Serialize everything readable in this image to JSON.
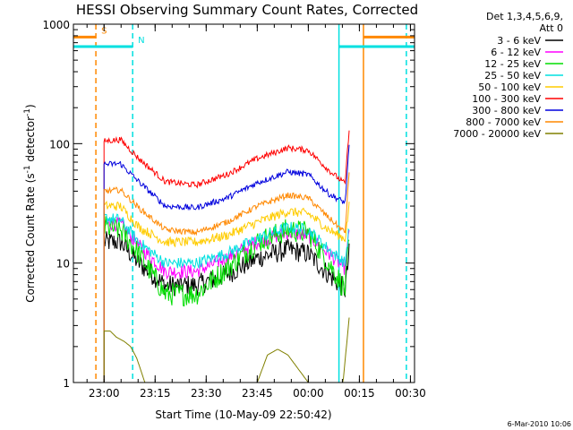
{
  "chart_data": {
    "type": "line",
    "title": "HESSI Observing Summary Count Rates, Corrected",
    "xlabel": "Start Time (10-May-09 22:50:42)",
    "ylabel": "Corrected Count Rate (s^-1 detector^-1)",
    "ylabel_parts": {
      "pre": "Corrected Count Rate (s",
      "exp1": "-1",
      "mid": " detector",
      "exp2": "-1",
      "post": ")"
    },
    "y_scale": "log",
    "ylim": [
      1,
      1000
    ],
    "xlim": [
      22.85,
      24.52
    ],
    "x_ticks": [
      {
        "value": 23.0,
        "label": "23:00"
      },
      {
        "value": 23.25,
        "label": "23:15"
      },
      {
        "value": 23.5,
        "label": "23:30"
      },
      {
        "value": 23.75,
        "label": "23:45"
      },
      {
        "value": 24.0,
        "label": "00:00"
      },
      {
        "value": 24.25,
        "label": "00:15"
      },
      {
        "value": 24.5,
        "label": "00:30"
      }
    ],
    "y_ticks": [
      {
        "value": 1,
        "label": "1"
      },
      {
        "value": 10,
        "label": "10"
      },
      {
        "value": 100,
        "label": "100"
      },
      {
        "value": 1000,
        "label": "1000"
      }
    ],
    "legend_header": [
      "Det 1,3,4,5,6,9,",
      "Att 0"
    ],
    "legend_placement": "right, outside plot",
    "grid": false,
    "data_window": [
      23.0,
      24.2
    ],
    "markers": [
      {
        "kind": "vline",
        "x": 22.96,
        "color": "#ff8800",
        "style": "dashed"
      },
      {
        "kind": "vline",
        "x": 23.14,
        "color": "#00e0e0",
        "style": "dashed"
      },
      {
        "kind": "vline",
        "x": 24.15,
        "color": "#00e0e0",
        "style": "solid"
      },
      {
        "kind": "vline",
        "x": 24.27,
        "color": "#ff8800",
        "style": "solid"
      },
      {
        "kind": "vline",
        "x": 24.48,
        "color": "#00e0e0",
        "style": "dashed"
      },
      {
        "kind": "hbar",
        "x1": 22.85,
        "x2": 22.96,
        "y": 780,
        "color": "#ff8800",
        "label": "S"
      },
      {
        "kind": "hbar",
        "x1": 22.85,
        "x2": 23.14,
        "y": 650,
        "color": "#00e0e0",
        "label": "N"
      },
      {
        "kind": "hbar",
        "x1": 24.15,
        "x2": 24.52,
        "y": 650,
        "color": "#00e0e0",
        "label": ""
      },
      {
        "kind": "hbar",
        "x1": 24.27,
        "x2": 24.52,
        "y": 780,
        "color": "#ff8800",
        "label": ""
      }
    ],
    "series": [
      {
        "name": "3 - 6 keV",
        "color": "#000000",
        "noise": 0.09,
        "points": [
          [
            23.0,
            15
          ],
          [
            23.08,
            15
          ],
          [
            23.17,
            10
          ],
          [
            23.3,
            6.5
          ],
          [
            23.45,
            6.5
          ],
          [
            23.6,
            8
          ],
          [
            23.75,
            11
          ],
          [
            23.9,
            13
          ],
          [
            24.0,
            12
          ],
          [
            24.1,
            8
          ],
          [
            24.18,
            6
          ],
          [
            24.2,
            12
          ]
        ]
      },
      {
        "name": "6 - 12 keV",
        "color": "#ff00ff",
        "noise": 0.06,
        "points": [
          [
            23.0,
            22
          ],
          [
            23.08,
            21
          ],
          [
            23.17,
            14
          ],
          [
            23.3,
            8.5
          ],
          [
            23.45,
            8.5
          ],
          [
            23.6,
            11
          ],
          [
            23.75,
            15
          ],
          [
            23.9,
            18
          ],
          [
            24.0,
            17
          ],
          [
            24.1,
            12
          ],
          [
            24.18,
            9
          ],
          [
            24.2,
            18
          ]
        ]
      },
      {
        "name": "12 - 25 keV",
        "color": "#00dd00",
        "noise": 0.1,
        "points": [
          [
            23.0,
            20
          ],
          [
            23.08,
            19
          ],
          [
            23.17,
            12
          ],
          [
            23.3,
            5.5
          ],
          [
            23.45,
            5.5
          ],
          [
            23.6,
            9
          ],
          [
            23.75,
            15
          ],
          [
            23.9,
            19
          ],
          [
            24.0,
            18
          ],
          [
            24.1,
            10
          ],
          [
            24.18,
            6
          ],
          [
            24.2,
            15
          ]
        ]
      },
      {
        "name": "25 - 50 keV",
        "color": "#00e0e0",
        "noise": 0.05,
        "points": [
          [
            23.0,
            24
          ],
          [
            23.08,
            23
          ],
          [
            23.17,
            15
          ],
          [
            23.3,
            10
          ],
          [
            23.45,
            10
          ],
          [
            23.6,
            12
          ],
          [
            23.75,
            16
          ],
          [
            23.9,
            20
          ],
          [
            24.0,
            19
          ],
          [
            24.1,
            13
          ],
          [
            24.18,
            10
          ],
          [
            24.2,
            20
          ]
        ]
      },
      {
        "name": "50 - 100 keV",
        "color": "#ffcc00",
        "noise": 0.04,
        "points": [
          [
            23.0,
            30
          ],
          [
            23.08,
            30
          ],
          [
            23.17,
            20
          ],
          [
            23.3,
            15
          ],
          [
            23.45,
            15
          ],
          [
            23.6,
            17
          ],
          [
            23.75,
            22
          ],
          [
            23.9,
            27
          ],
          [
            24.0,
            26
          ],
          [
            24.1,
            19
          ],
          [
            24.18,
            16
          ],
          [
            24.2,
            30
          ]
        ]
      },
      {
        "name": "100 - 300 keV",
        "color": "#ff0000",
        "noise": 0.025,
        "points": [
          [
            23.0,
            105
          ],
          [
            23.08,
            108
          ],
          [
            23.17,
            75
          ],
          [
            23.3,
            48
          ],
          [
            23.45,
            45
          ],
          [
            23.6,
            55
          ],
          [
            23.75,
            75
          ],
          [
            23.9,
            92
          ],
          [
            24.0,
            88
          ],
          [
            24.1,
            60
          ],
          [
            24.18,
            46
          ],
          [
            24.2,
            135
          ]
        ]
      },
      {
        "name": "300 - 800 keV",
        "color": "#0000dd",
        "noise": 0.025,
        "points": [
          [
            23.0,
            67
          ],
          [
            23.08,
            68
          ],
          [
            23.17,
            48
          ],
          [
            23.3,
            30
          ],
          [
            23.45,
            29
          ],
          [
            23.6,
            35
          ],
          [
            23.75,
            47
          ],
          [
            23.9,
            58
          ],
          [
            24.0,
            55
          ],
          [
            24.1,
            38
          ],
          [
            24.18,
            32
          ],
          [
            24.2,
            95
          ]
        ]
      },
      {
        "name": "800 - 7000 keV",
        "color": "#ff8800",
        "noise": 0.025,
        "points": [
          [
            23.0,
            40
          ],
          [
            23.08,
            41
          ],
          [
            23.17,
            29
          ],
          [
            23.3,
            19
          ],
          [
            23.45,
            18
          ],
          [
            23.6,
            22
          ],
          [
            23.75,
            30
          ],
          [
            23.9,
            37
          ],
          [
            24.0,
            35
          ],
          [
            24.1,
            24
          ],
          [
            24.18,
            18
          ],
          [
            24.2,
            60
          ]
        ]
      },
      {
        "name": "7000 - 20000 keV",
        "color": "#808000",
        "noise": 0.0,
        "points": [
          [
            23.0,
            2.7
          ],
          [
            23.03,
            2.7
          ],
          [
            23.06,
            2.4
          ],
          [
            23.1,
            2.2
          ],
          [
            23.13,
            2.0
          ],
          [
            23.16,
            1.6
          ],
          [
            23.2,
            1.0
          ],
          [
            23.75,
            1.0
          ],
          [
            23.8,
            1.7
          ],
          [
            23.85,
            1.9
          ],
          [
            23.9,
            1.7
          ],
          [
            24.0,
            1.0
          ],
          [
            24.17,
            1.0
          ],
          [
            24.2,
            3.5
          ]
        ]
      }
    ]
  },
  "footer": {
    "timestamp": "6-Mar-2010 10:06"
  }
}
